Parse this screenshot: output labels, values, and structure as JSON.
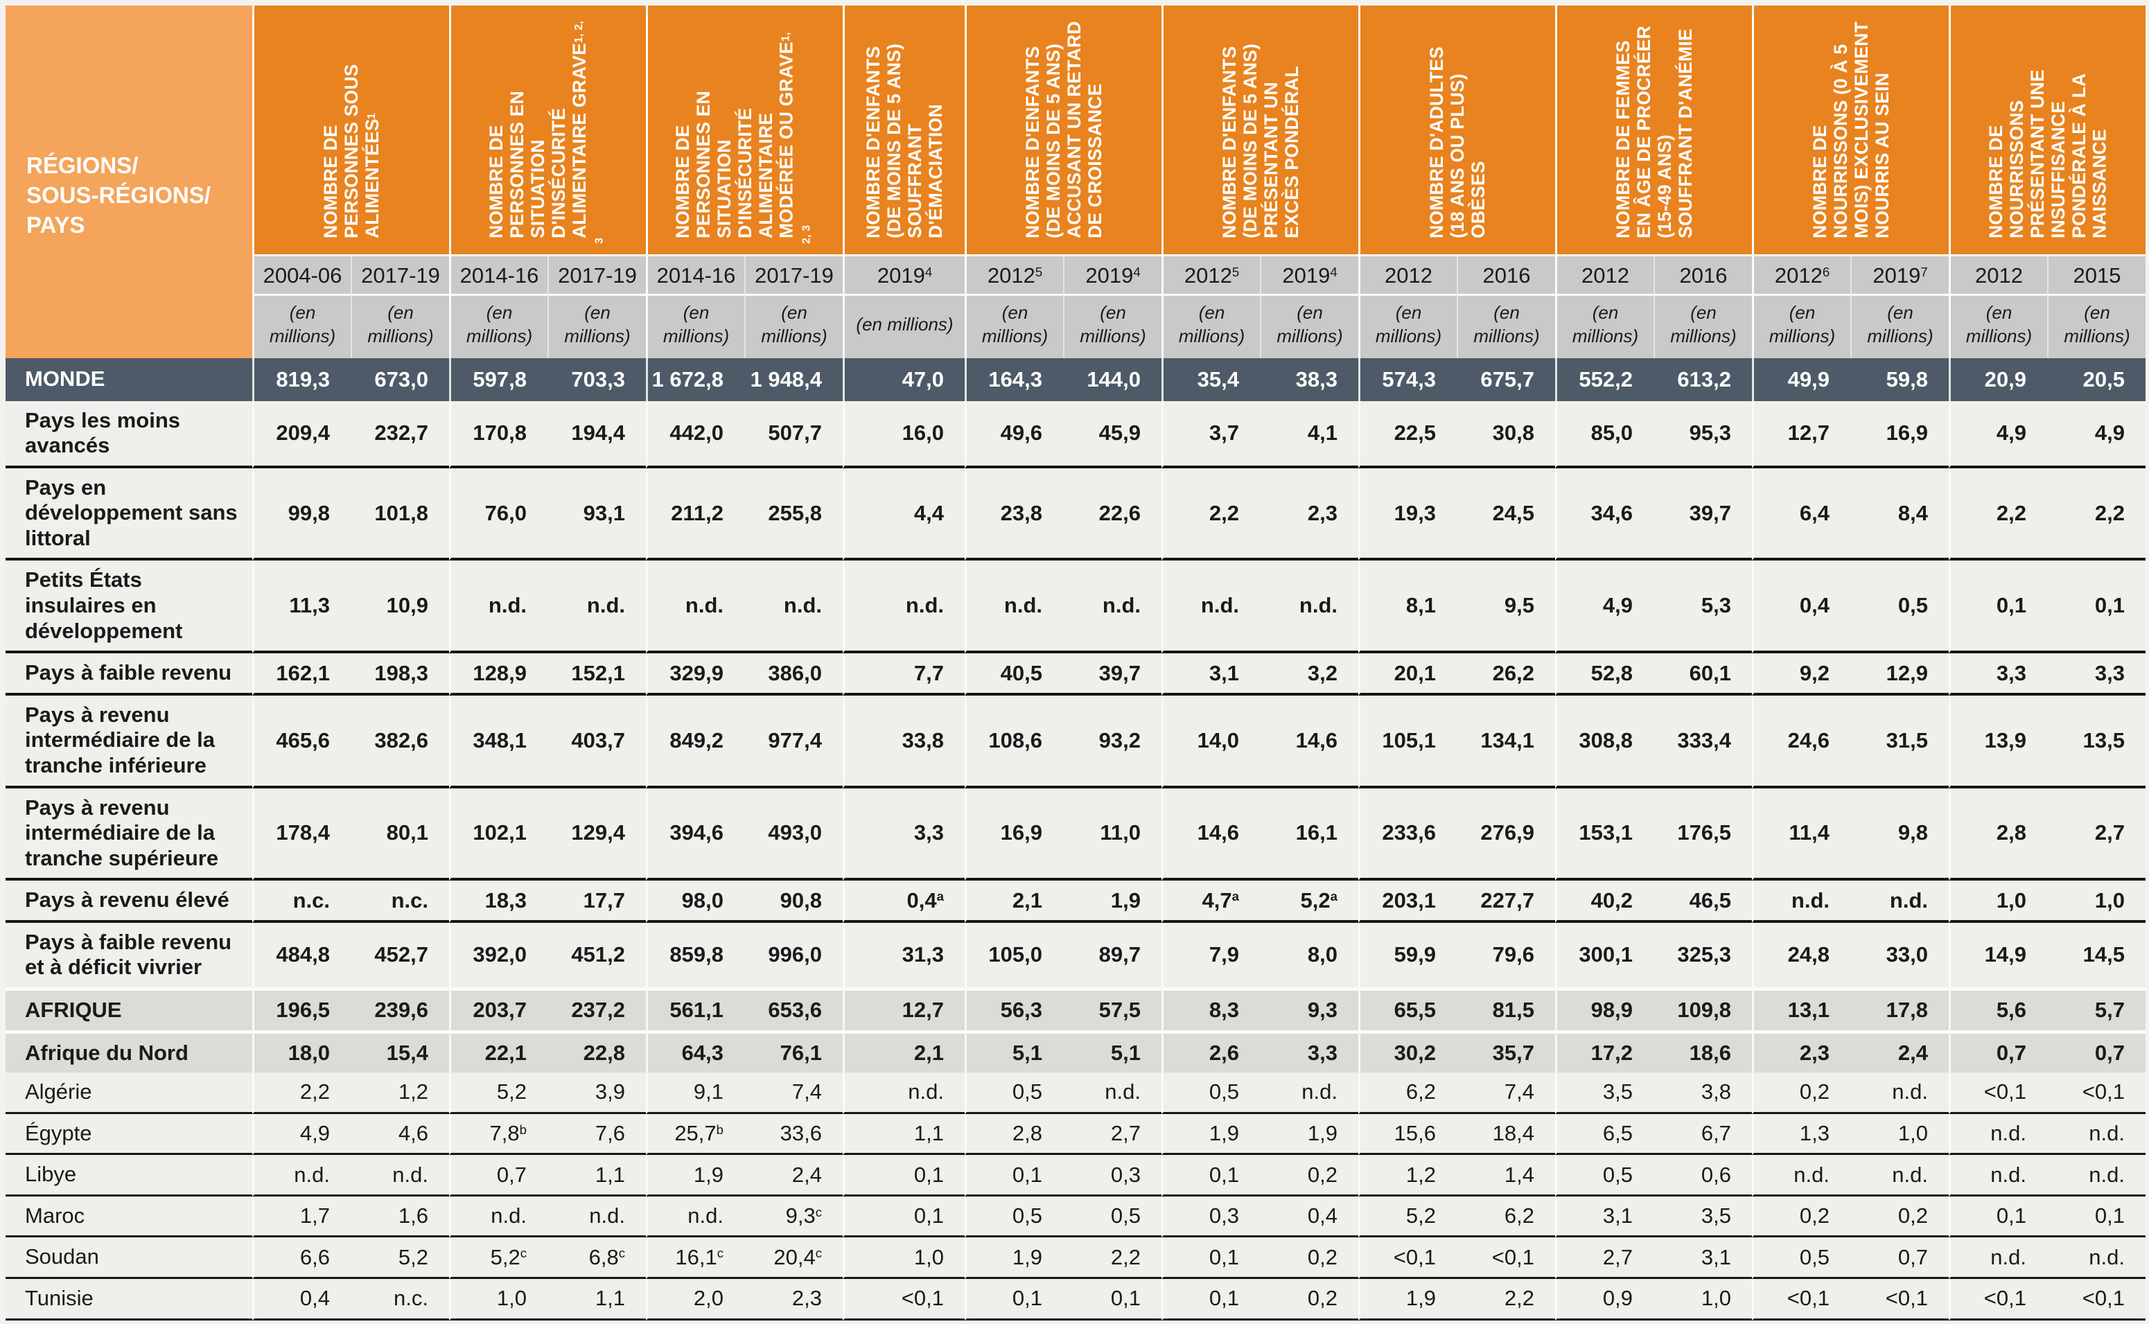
{
  "table": {
    "corner_label_lines": [
      "RÉGIONS/",
      "SOUS-RÉGIONS/",
      "PAYS"
    ],
    "unit_label": "(en millions)",
    "column_groups": [
      {
        "title": "NOMBRE DE PERSONNES SOUS ALIMENTÉES",
        "sup": "1",
        "years": [
          "2004-06",
          "2017-19"
        ]
      },
      {
        "title": "NOMBRE DE PERSONNES EN SITUATION D'INSÉCURITÉ ALIMENTAIRE GRAVE",
        "sup": "1, 2, 3",
        "years": [
          "2014-16",
          "2017-19"
        ]
      },
      {
        "title": "NOMBRE DE PERSONNES EN SITUATION D'INSÉCURITÉ ALIMENTAIRE MODÉRÉE OU GRAVE",
        "sup": "1, 2, 3",
        "years": [
          "2014-16",
          "2017-19"
        ]
      },
      {
        "title": "NOMBRE D'ENFANTS (DE MOINS DE 5 ANS) SOUFFRANT D'ÉMACIATION",
        "sup": "",
        "years": [
          "2019^4"
        ]
      },
      {
        "title": "NOMBRE D'ENFANTS (DE MOINS DE 5 ANS) ACCUSANT UN RETARD DE CROISSANCE",
        "sup": "",
        "years": [
          "2012^5",
          "2019^4"
        ]
      },
      {
        "title": "NOMBRE D'ENFANTS (DE MOINS DE 5 ANS) PRÉSENTANT UN EXCÈS PONDÉRAL",
        "sup": "",
        "years": [
          "2012^5",
          "2019^4"
        ]
      },
      {
        "title": "NOMBRE D'ADULTES (18 ANS OU PLUS) OBÈSES",
        "sup": "",
        "years": [
          "2012",
          "2016"
        ]
      },
      {
        "title": "NOMBRE DE FEMMES EN ÂGE DE PROCRÉER (15-49 ANS) SOUFFRANT D'ANÉMIE",
        "sup": "",
        "years": [
          "2012",
          "2016"
        ]
      },
      {
        "title": "NOMBRE DE NOURRISSONS (0 À 5 MOIS) EXCLUSIVEMENT NOURRIS AU SEIN",
        "sup": "",
        "years": [
          "2012^6",
          "2019^7"
        ]
      },
      {
        "title": "NOMBRE DE NOURRISSONS PRÉSENTANT UNE INSUFFISANCE PONDÉRALE À LA NAISSANCE",
        "sup": "",
        "years": [
          "2012",
          "2015"
        ]
      }
    ],
    "rows": [
      {
        "label": "MONDE",
        "type": "world",
        "values": [
          "819,3",
          "673,0",
          "597,8",
          "703,3",
          "1 672,8",
          "1 948,4",
          "47,0",
          "164,3",
          "144,0",
          "35,4",
          "38,3",
          "574,3",
          "675,7",
          "552,2",
          "613,2",
          "49,9",
          "59,8",
          "20,9",
          "20,5"
        ]
      },
      {
        "label": "Pays les moins avancés",
        "type": "group",
        "values": [
          "209,4",
          "232,7",
          "170,8",
          "194,4",
          "442,0",
          "507,7",
          "16,0",
          "49,6",
          "45,9",
          "3,7",
          "4,1",
          "22,5",
          "30,8",
          "85,0",
          "95,3",
          "12,7",
          "16,9",
          "4,9",
          "4,9"
        ]
      },
      {
        "label": "Pays en développement sans littoral",
        "type": "group",
        "values": [
          "99,8",
          "101,8",
          "76,0",
          "93,1",
          "211,2",
          "255,8",
          "4,4",
          "23,8",
          "22,6",
          "2,2",
          "2,3",
          "19,3",
          "24,5",
          "34,6",
          "39,7",
          "6,4",
          "8,4",
          "2,2",
          "2,2"
        ]
      },
      {
        "label": "Petits États insulaires en développement",
        "type": "group",
        "values": [
          "11,3",
          "10,9",
          "n.d.",
          "n.d.",
          "n.d.",
          "n.d.",
          "n.d.",
          "n.d.",
          "n.d.",
          "n.d.",
          "n.d.",
          "8,1",
          "9,5",
          "4,9",
          "5,3",
          "0,4",
          "0,5",
          "0,1",
          "0,1"
        ]
      },
      {
        "label": "Pays à faible revenu",
        "type": "group",
        "values": [
          "162,1",
          "198,3",
          "128,9",
          "152,1",
          "329,9",
          "386,0",
          "7,7",
          "40,5",
          "39,7",
          "3,1",
          "3,2",
          "20,1",
          "26,2",
          "52,8",
          "60,1",
          "9,2",
          "12,9",
          "3,3",
          "3,3"
        ]
      },
      {
        "label": "Pays à revenu intermédiaire de la tranche inférieure",
        "type": "group",
        "values": [
          "465,6",
          "382,6",
          "348,1",
          "403,7",
          "849,2",
          "977,4",
          "33,8",
          "108,6",
          "93,2",
          "14,0",
          "14,6",
          "105,1",
          "134,1",
          "308,8",
          "333,4",
          "24,6",
          "31,5",
          "13,9",
          "13,5"
        ]
      },
      {
        "label": "Pays à revenu intermédiaire de la tranche supérieure",
        "type": "group",
        "values": [
          "178,4",
          "80,1",
          "102,1",
          "129,4",
          "394,6",
          "493,0",
          "3,3",
          "16,9",
          "11,0",
          "14,6",
          "16,1",
          "233,6",
          "276,9",
          "153,1",
          "176,5",
          "11,4",
          "9,8",
          "2,8",
          "2,7"
        ]
      },
      {
        "label": "Pays à revenu élevé",
        "type": "group",
        "values": [
          "n.c.",
          "n.c.",
          "18,3",
          "17,7",
          "98,0",
          "90,8",
          "0,4^a",
          "2,1",
          "1,9",
          "4,7^a",
          "5,2^a",
          "203,1",
          "227,7",
          "40,2",
          "46,5",
          "n.d.",
          "n.d.",
          "1,0",
          "1,0"
        ]
      },
      {
        "label": "Pays à faible revenu et à déficit vivrier",
        "type": "group",
        "values": [
          "484,8",
          "452,7",
          "392,0",
          "451,2",
          "859,8",
          "996,0",
          "31,3",
          "105,0",
          "89,7",
          "7,9",
          "8,0",
          "59,9",
          "79,6",
          "300,1",
          "325,3",
          "24,8",
          "33,0",
          "14,9",
          "14,5"
        ]
      },
      {
        "label": "AFRIQUE",
        "type": "region",
        "values": [
          "196,5",
          "239,6",
          "203,7",
          "237,2",
          "561,1",
          "653,6",
          "12,7",
          "56,3",
          "57,5",
          "8,3",
          "9,3",
          "65,5",
          "81,5",
          "98,9",
          "109,8",
          "13,1",
          "17,8",
          "5,6",
          "5,7"
        ]
      },
      {
        "label": "Afrique du Nord",
        "type": "subregion",
        "values": [
          "18,0",
          "15,4",
          "22,1",
          "22,8",
          "64,3",
          "76,1",
          "2,1",
          "5,1",
          "5,1",
          "2,6",
          "3,3",
          "30,2",
          "35,7",
          "17,2",
          "18,6",
          "2,3",
          "2,4",
          "0,7",
          "0,7"
        ]
      },
      {
        "label": "Algérie",
        "type": "country",
        "values": [
          "2,2",
          "1,2",
          "5,2",
          "3,9",
          "9,1",
          "7,4",
          "n.d.",
          "0,5",
          "n.d.",
          "0,5",
          "n.d.",
          "6,2",
          "7,4",
          "3,5",
          "3,8",
          "0,2",
          "n.d.",
          "<0,1",
          "<0,1"
        ]
      },
      {
        "label": "Égypte",
        "type": "country",
        "values": [
          "4,9",
          "4,6",
          "7,8^b",
          "7,6",
          "25,7^b",
          "33,6",
          "1,1",
          "2,8",
          "2,7",
          "1,9",
          "1,9",
          "15,6",
          "18,4",
          "6,5",
          "6,7",
          "1,3",
          "1,0",
          "n.d.",
          "n.d."
        ]
      },
      {
        "label": "Libye",
        "type": "country",
        "values": [
          "n.d.",
          "n.d.",
          "0,7",
          "1,1",
          "1,9",
          "2,4",
          "0,1",
          "0,1",
          "0,3",
          "0,1",
          "0,2",
          "1,2",
          "1,4",
          "0,5",
          "0,6",
          "n.d.",
          "n.d.",
          "n.d.",
          "n.d."
        ]
      },
      {
        "label": "Maroc",
        "type": "country",
        "values": [
          "1,7",
          "1,6",
          "n.d.",
          "n.d.",
          "n.d.",
          "9,3^c",
          "0,1",
          "0,5",
          "0,5",
          "0,3",
          "0,4",
          "5,2",
          "6,2",
          "3,1",
          "3,5",
          "0,2",
          "0,2",
          "0,1",
          "0,1"
        ]
      },
      {
        "label": "Soudan",
        "type": "country",
        "values": [
          "6,6",
          "5,2",
          "5,2^c",
          "6,8^c",
          "16,1^c",
          "20,4^c",
          "1,0",
          "1,9",
          "2,2",
          "0,1",
          "0,2",
          "<0,1",
          "<0,1",
          "2,7",
          "3,1",
          "0,5",
          "0,7",
          "n.d.",
          "n.d."
        ]
      },
      {
        "label": "Tunisie",
        "type": "country",
        "values": [
          "0,4",
          "n.c.",
          "1,0",
          "1,1",
          "2,0",
          "2,3",
          "<0,1",
          "0,1",
          "0,1",
          "0,1",
          "0,2",
          "1,9",
          "2,2",
          "0,9",
          "1,0",
          "<0,1",
          "<0,1",
          "<0,1",
          "<0,1"
        ]
      }
    ]
  },
  "colors": {
    "header_orange": "#E8831F",
    "corner_orange": "#F4A45B",
    "year_unit_gray": "#C9C9C8",
    "world_row_slate": "#4E5A67",
    "region_row_gray": "#DBDBD8",
    "body_row_light": "#EFEFEC",
    "rule_black": "#161616",
    "separator_white": "#FBFBF9"
  }
}
